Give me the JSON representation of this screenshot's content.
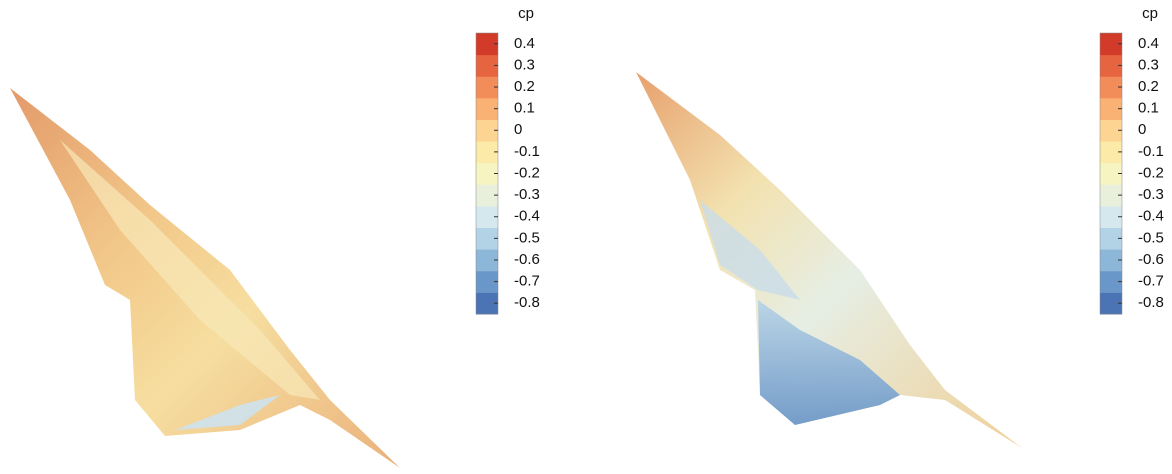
{
  "chart_data": [
    {
      "type": "contour",
      "colorbar": {
        "label": "cp",
        "clim": [
          -0.85,
          0.45
        ],
        "ticks": [
          0.4,
          0.3,
          0.2,
          0.1,
          0,
          -0.1,
          -0.2,
          -0.3,
          -0.4,
          -0.5,
          -0.6,
          -0.7,
          -0.8
        ],
        "colors": [
          "#4a74b3",
          "#6a97c9",
          "#8cb7d8",
          "#b2d2e6",
          "#d4e8ee",
          "#e8f0dc",
          "#f6f4c0",
          "#fbeaa8",
          "#fdd492",
          "#f9b273",
          "#f28c58",
          "#e6643f",
          "#d23a2a"
        ]
      }
    },
    {
      "type": "contour",
      "colorbar": {
        "label": "cp",
        "clim": [
          -0.85,
          0.45
        ],
        "ticks": [
          0.4,
          0.3,
          0.2,
          0.1,
          0,
          -0.1,
          -0.2,
          -0.3,
          -0.4,
          -0.5,
          -0.6,
          -0.7,
          -0.8
        ],
        "colors": [
          "#4a74b3",
          "#6a97c9",
          "#8cb7d8",
          "#b2d2e6",
          "#d4e8ee",
          "#e8f0dc",
          "#f6f4c0",
          "#fbeaa8",
          "#fdd492",
          "#f9b273",
          "#f28c58",
          "#e6643f",
          "#d23a2a"
        ]
      }
    }
  ]
}
